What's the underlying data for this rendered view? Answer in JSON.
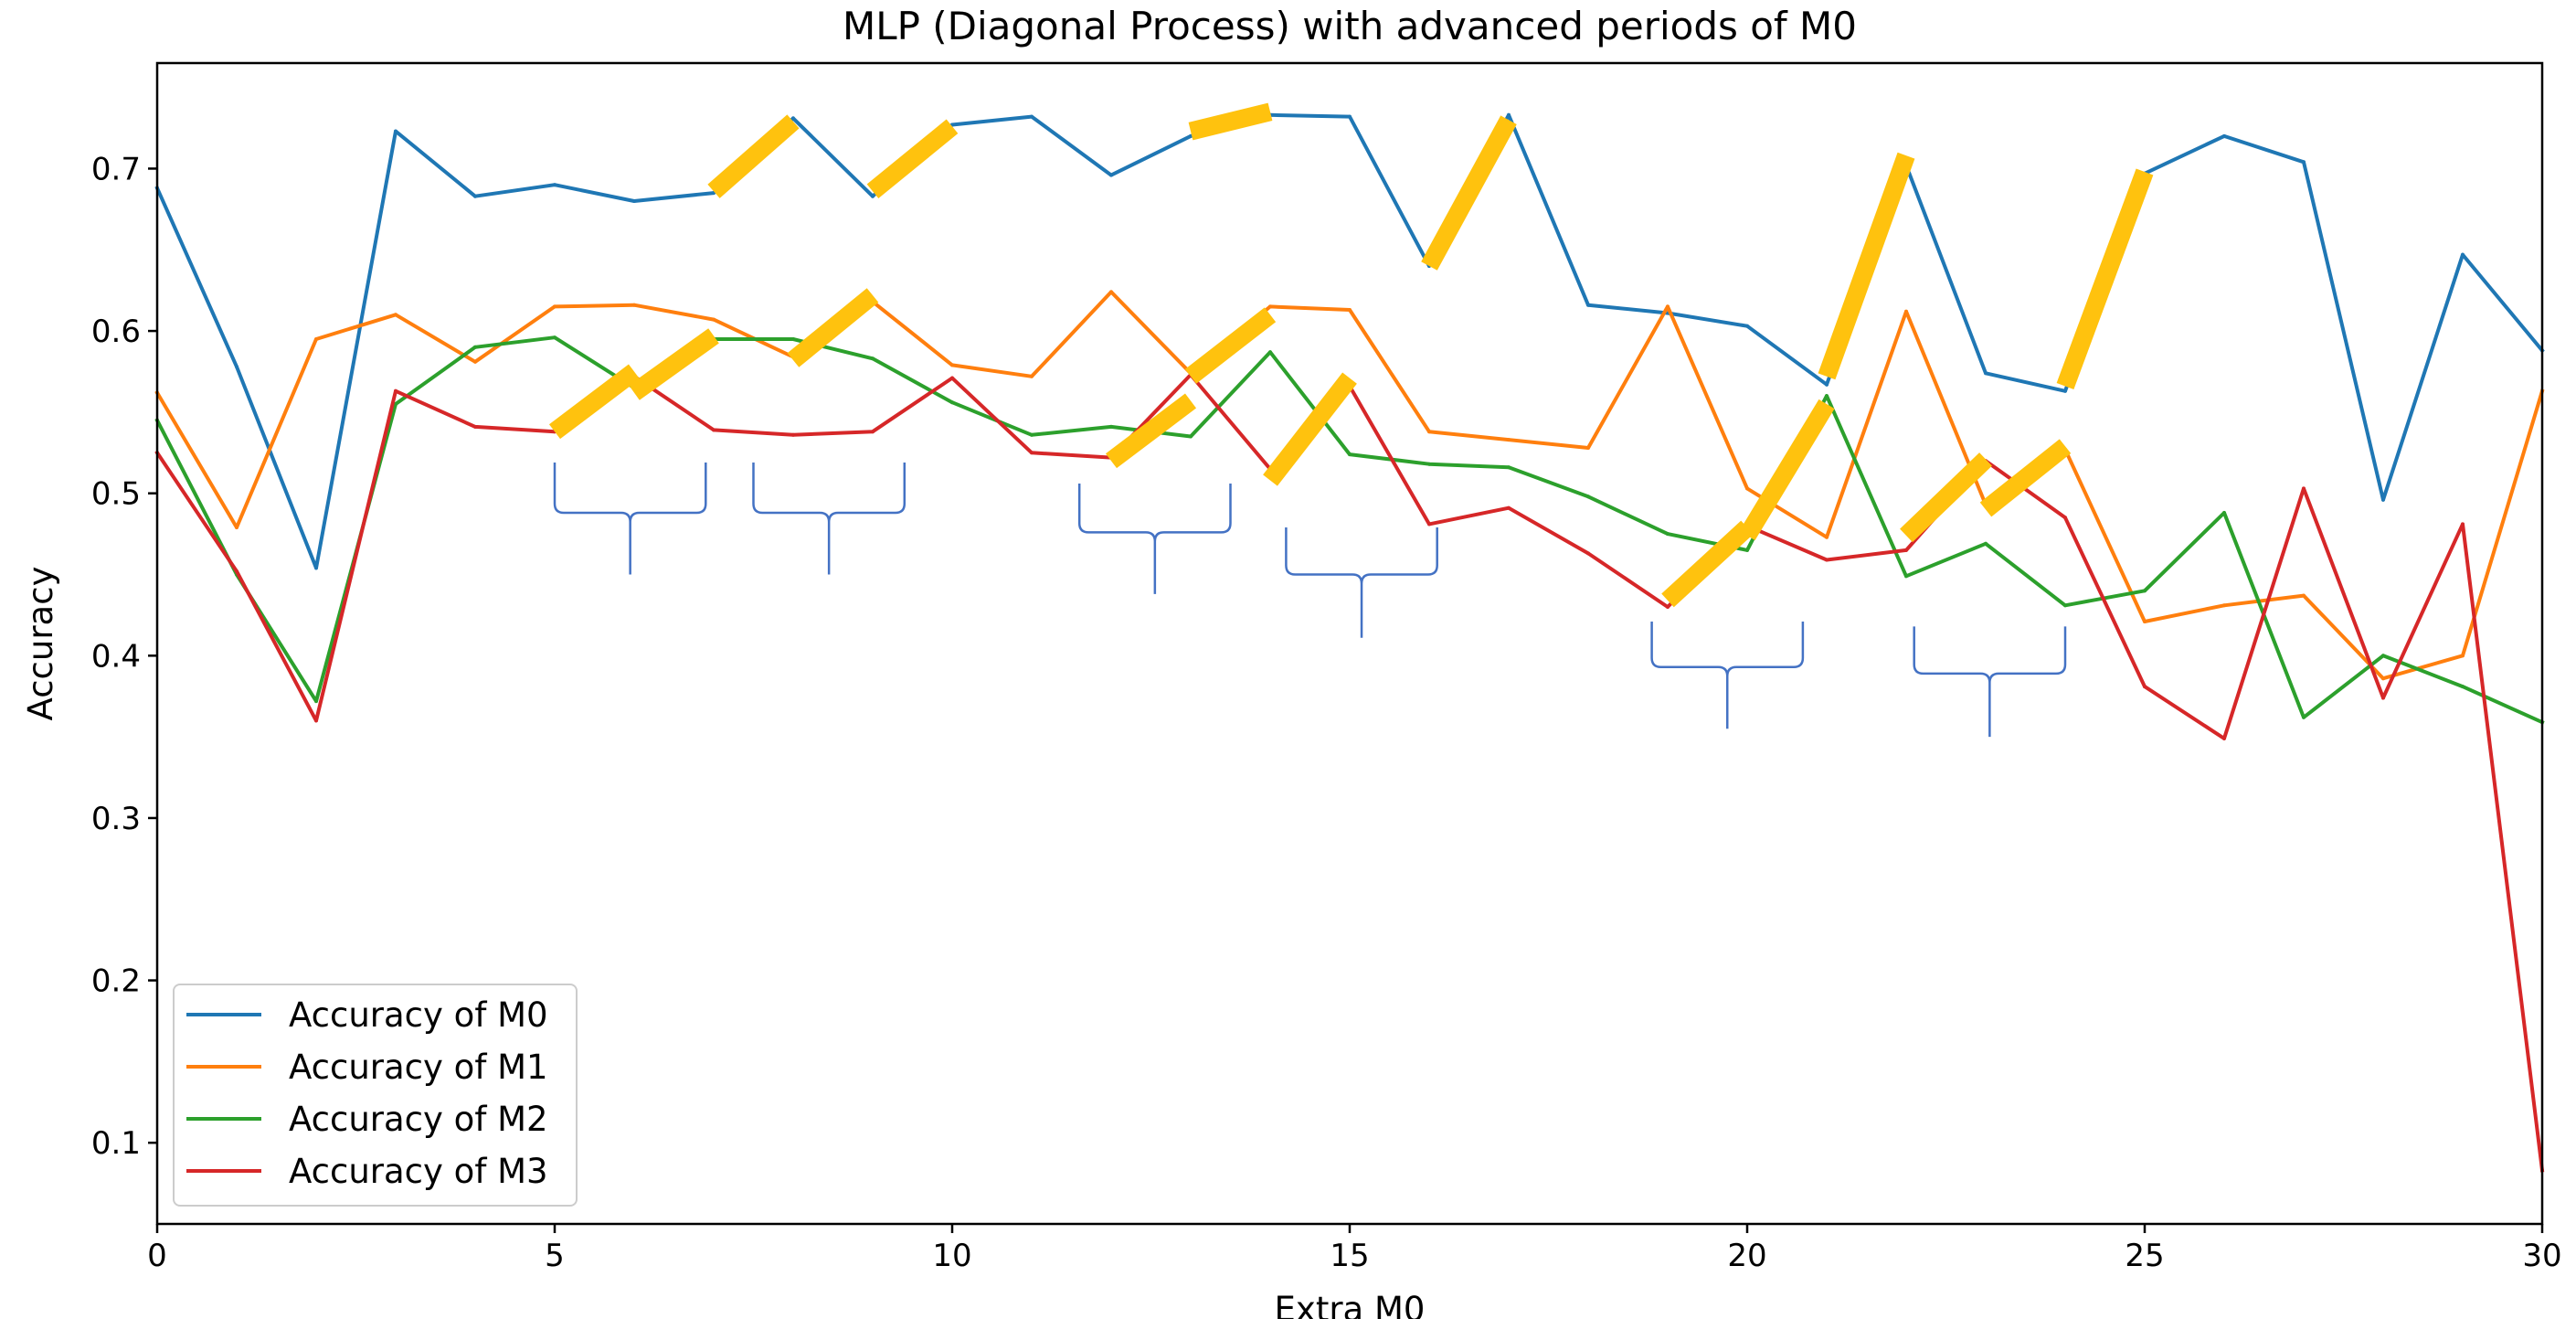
{
  "chart_data": {
    "type": "line",
    "title": "MLP (Diagonal Process) with advanced periods of M0",
    "xlabel": "Extra M0",
    "ylabel": "Accuracy",
    "xlim": [
      0,
      30
    ],
    "ylim": [
      0.05,
      0.765
    ],
    "xticks": [
      0,
      5,
      10,
      15,
      20,
      25,
      30
    ],
    "yticks": [
      0.1,
      0.2,
      0.3,
      0.4,
      0.5,
      0.6,
      0.7
    ],
    "x": [
      0,
      1,
      2,
      3,
      4,
      5,
      6,
      7,
      8,
      9,
      10,
      11,
      12,
      13,
      14,
      15,
      16,
      17,
      18,
      19,
      20,
      21,
      22,
      23,
      24,
      25,
      26,
      27,
      28,
      29,
      30
    ],
    "legend_position": "lower-left",
    "grid": false,
    "series": [
      {
        "name": "Accuracy of M0",
        "color": "#1f77b4",
        "values": [
          0.688,
          0.578,
          0.454,
          0.723,
          0.683,
          0.69,
          0.68,
          0.685,
          0.731,
          0.683,
          0.727,
          0.732,
          0.696,
          0.72,
          0.733,
          0.732,
          0.64,
          0.733,
          0.616,
          0.611,
          0.603,
          0.567,
          0.702,
          0.574,
          0.563,
          0.697,
          0.72,
          0.704,
          0.496,
          0.647,
          0.588
        ]
      },
      {
        "name": "Accuracy of M1",
        "color": "#ff7f0e",
        "values": [
          0.562,
          0.479,
          0.595,
          0.61,
          0.581,
          0.615,
          0.616,
          0.607,
          0.584,
          0.618,
          0.579,
          0.572,
          0.624,
          0.574,
          0.615,
          0.613,
          0.538,
          0.533,
          0.528,
          0.615,
          0.503,
          0.473,
          0.612,
          0.493,
          0.527,
          0.421,
          0.431,
          0.437,
          0.386,
          0.4,
          0.563
        ]
      },
      {
        "name": "Accuracy of M2",
        "color": "#2ca02c",
        "values": [
          0.545,
          0.45,
          0.372,
          0.555,
          0.59,
          0.596,
          0.565,
          0.595,
          0.595,
          0.583,
          0.556,
          0.536,
          0.541,
          0.535,
          0.587,
          0.524,
          0.518,
          0.516,
          0.498,
          0.475,
          0.465,
          0.56,
          0.449,
          0.469,
          0.431,
          0.44,
          0.488,
          0.362,
          0.4,
          0.381,
          0.359
        ]
      },
      {
        "name": "Accuracy of M3",
        "color": "#d62728",
        "values": [
          0.525,
          0.452,
          0.36,
          0.563,
          0.541,
          0.538,
          0.572,
          0.539,
          0.536,
          0.538,
          0.571,
          0.525,
          0.522,
          0.573,
          0.515,
          0.566,
          0.481,
          0.491,
          0.463,
          0.43,
          0.48,
          0.459,
          0.465,
          0.52,
          0.485,
          0.381,
          0.349,
          0.503,
          0.374,
          0.481,
          0.083
        ]
      }
    ],
    "highlights": {
      "color": "#ffc20e",
      "segments": [
        {
          "x1": 7,
          "y1": 0.686,
          "x2": 8,
          "y2": 0.729
        },
        {
          "x1": 9,
          "y1": 0.686,
          "x2": 10,
          "y2": 0.726
        },
        {
          "x1": 13,
          "y1": 0.723,
          "x2": 14,
          "y2": 0.735
        },
        {
          "x1": 16,
          "y1": 0.64,
          "x2": 17,
          "y2": 0.73
        },
        {
          "x1": 21,
          "y1": 0.572,
          "x2": 22,
          "y2": 0.708
        },
        {
          "x1": 24,
          "y1": 0.566,
          "x2": 25,
          "y2": 0.698
        },
        {
          "x1": 8,
          "y1": 0.582,
          "x2": 9,
          "y2": 0.622
        },
        {
          "x1": 5,
          "y1": 0.538,
          "x2": 6,
          "y2": 0.575
        },
        {
          "x1": 6,
          "y1": 0.562,
          "x2": 7,
          "y2": 0.597
        },
        {
          "x1": 13,
          "y1": 0.572,
          "x2": 14,
          "y2": 0.61
        },
        {
          "x1": 12,
          "y1": 0.52,
          "x2": 13,
          "y2": 0.557
        },
        {
          "x1": 14,
          "y1": 0.508,
          "x2": 15,
          "y2": 0.571
        },
        {
          "x1": 19,
          "y1": 0.434,
          "x2": 20,
          "y2": 0.479
        },
        {
          "x1": 20,
          "y1": 0.474,
          "x2": 21,
          "y2": 0.555
        },
        {
          "x1": 22,
          "y1": 0.474,
          "x2": 23,
          "y2": 0.521
        },
        {
          "x1": 23,
          "y1": 0.49,
          "x2": 24,
          "y2": 0.529
        }
      ]
    },
    "braces": {
      "color": "#4472c4",
      "items": [
        {
          "x1": 5.0,
          "x2": 6.9,
          "top": 0.519,
          "bar": 0.488,
          "tip": 0.45
        },
        {
          "x1": 7.5,
          "x2": 9.4,
          "top": 0.519,
          "bar": 0.488,
          "tip": 0.45
        },
        {
          "x1": 11.6,
          "x2": 13.5,
          "top": 0.506,
          "bar": 0.476,
          "tip": 0.438
        },
        {
          "x1": 14.2,
          "x2": 16.1,
          "top": 0.479,
          "bar": 0.45,
          "tip": 0.411
        },
        {
          "x1": 18.8,
          "x2": 20.7,
          "top": 0.421,
          "bar": 0.393,
          "tip": 0.355
        },
        {
          "x1": 22.1,
          "x2": 24.0,
          "top": 0.418,
          "bar": 0.389,
          "tip": 0.35
        }
      ]
    }
  }
}
